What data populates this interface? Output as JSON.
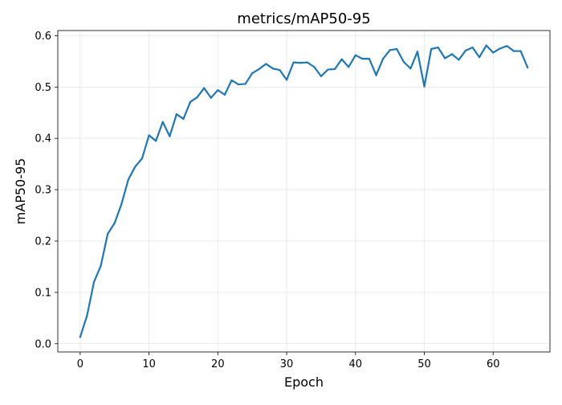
{
  "chart_data": {
    "type": "line",
    "title": "metrics/mAP50-95",
    "xlabel": "Epoch",
    "ylabel": "mAP50-95",
    "xlim": [
      -3.25,
      68.25
    ],
    "ylim": [
      -0.016,
      0.61
    ],
    "xticks": [
      0,
      10,
      20,
      30,
      40,
      50,
      60
    ],
    "yticks": [
      0.0,
      0.1,
      0.2,
      0.3,
      0.4,
      0.5,
      0.6
    ],
    "xtick_labels": [
      "0",
      "10",
      "20",
      "30",
      "40",
      "50",
      "60"
    ],
    "ytick_labels": [
      "0.0",
      "0.1",
      "0.2",
      "0.3",
      "0.4",
      "0.5",
      "0.6"
    ],
    "grid": true,
    "series": [
      {
        "color": "#1f77b4",
        "x": [
          0,
          1,
          2,
          3,
          4,
          5,
          6,
          7,
          8,
          9,
          10,
          11,
          12,
          13,
          14,
          15,
          16,
          17,
          18,
          19,
          20,
          21,
          22,
          23,
          24,
          25,
          26,
          27,
          28,
          29,
          30,
          31,
          32,
          33,
          34,
          35,
          36,
          37,
          38,
          39,
          40,
          41,
          42,
          43,
          44,
          45,
          46,
          47,
          48,
          49,
          50,
          51,
          52,
          53,
          54,
          55,
          56,
          57,
          58,
          59,
          60,
          61,
          62,
          63,
          64,
          65
        ],
        "y": [
          0.013,
          0.055,
          0.12,
          0.152,
          0.214,
          0.235,
          0.272,
          0.32,
          0.345,
          0.361,
          0.406,
          0.395,
          0.432,
          0.404,
          0.447,
          0.438,
          0.471,
          0.48,
          0.498,
          0.479,
          0.494,
          0.485,
          0.513,
          0.505,
          0.506,
          0.527,
          0.535,
          0.545,
          0.536,
          0.533,
          0.514,
          0.548,
          0.547,
          0.548,
          0.539,
          0.521,
          0.534,
          0.535,
          0.554,
          0.539,
          0.562,
          0.555,
          0.555,
          0.523,
          0.555,
          0.572,
          0.574,
          0.549,
          0.536,
          0.569,
          0.501,
          0.574,
          0.577,
          0.556,
          0.564,
          0.553,
          0.571,
          0.577,
          0.558,
          0.581,
          0.567,
          0.575,
          0.58,
          0.57,
          0.57,
          0.538
        ]
      }
    ]
  }
}
